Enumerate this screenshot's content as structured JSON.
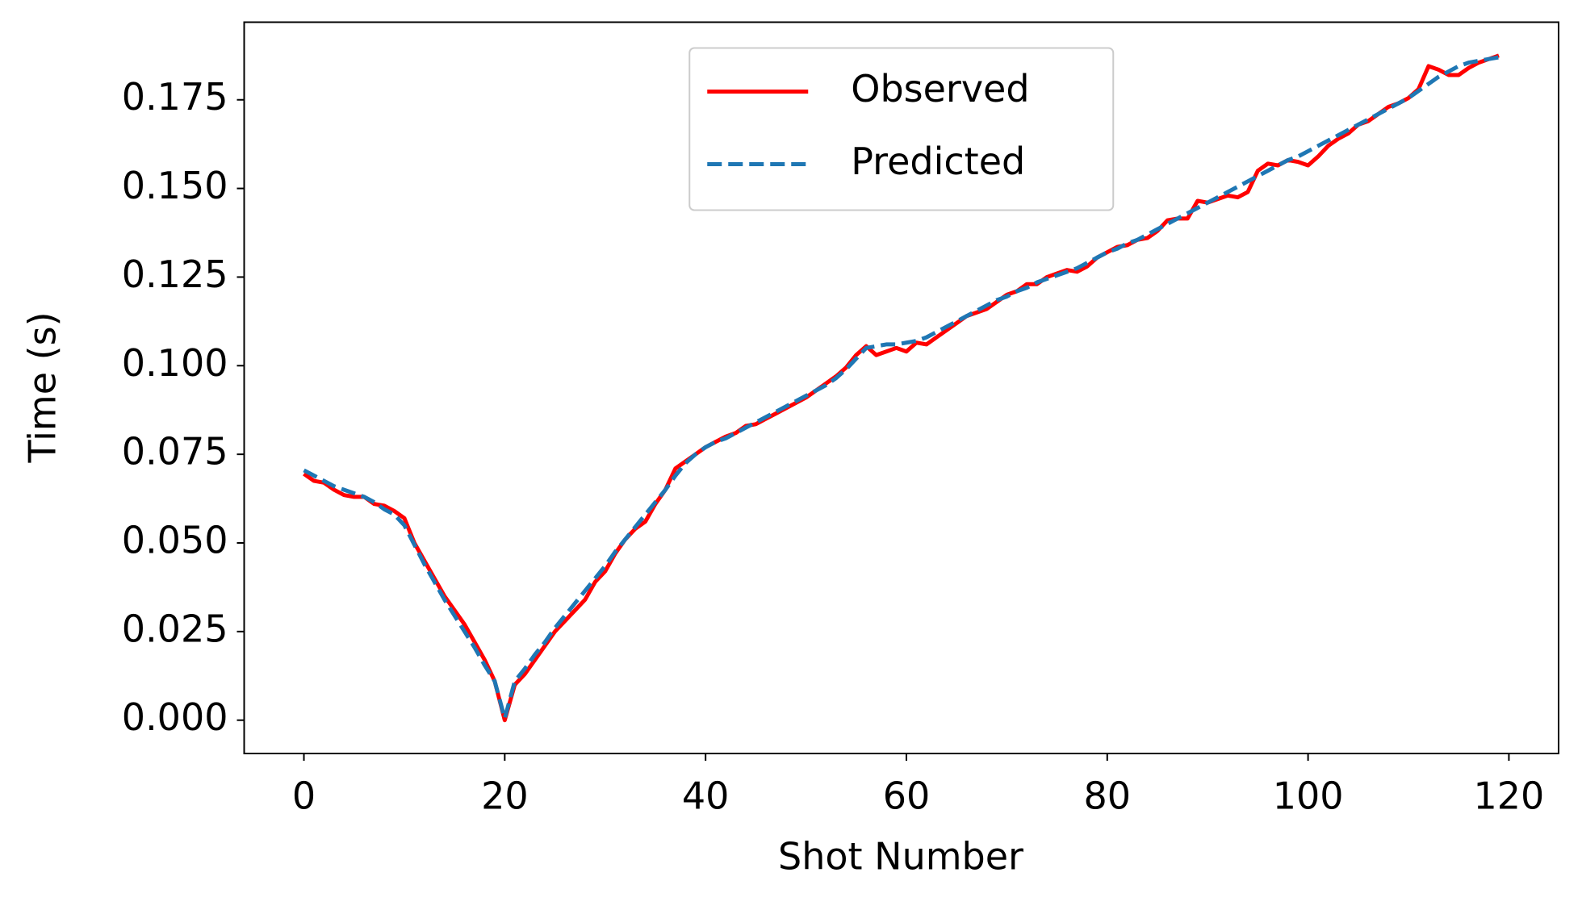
{
  "chart_data": {
    "type": "line",
    "xlabel": "Shot Number",
    "ylabel": "Time (s)",
    "x": [
      0,
      1,
      2,
      3,
      4,
      5,
      6,
      7,
      8,
      9,
      10,
      11,
      12,
      13,
      14,
      15,
      16,
      17,
      18,
      19,
      20,
      21,
      22,
      23,
      24,
      25,
      26,
      27,
      28,
      29,
      30,
      31,
      32,
      33,
      34,
      35,
      36,
      37,
      38,
      39,
      40,
      41,
      42,
      43,
      44,
      45,
      46,
      47,
      48,
      49,
      50,
      51,
      52,
      53,
      54,
      55,
      56,
      57,
      58,
      59,
      60,
      61,
      62,
      63,
      64,
      65,
      66,
      67,
      68,
      69,
      70,
      71,
      72,
      73,
      74,
      75,
      76,
      77,
      78,
      79,
      80,
      81,
      82,
      83,
      84,
      85,
      86,
      87,
      88,
      89,
      90,
      91,
      92,
      93,
      94,
      95,
      96,
      97,
      98,
      99,
      100,
      101,
      102,
      103,
      104,
      105,
      106,
      107,
      108,
      109,
      110,
      111,
      112,
      113,
      114,
      115,
      116,
      117,
      118,
      119
    ],
    "series": [
      {
        "name": "Observed",
        "color": "#ff0000",
        "linestyle": "solid",
        "values": [
          0.0695,
          0.0675,
          0.067,
          0.065,
          0.0635,
          0.063,
          0.063,
          0.061,
          0.0605,
          0.059,
          0.057,
          0.05,
          0.045,
          0.04,
          0.035,
          0.031,
          0.027,
          0.022,
          0.017,
          0.011,
          0.0,
          0.01,
          0.013,
          0.017,
          0.021,
          0.025,
          0.028,
          0.031,
          0.034,
          0.039,
          0.042,
          0.047,
          0.051,
          0.054,
          0.056,
          0.061,
          0.065,
          0.071,
          0.073,
          0.075,
          0.077,
          0.0785,
          0.08,
          0.081,
          0.083,
          0.0835,
          0.085,
          0.0865,
          0.088,
          0.0895,
          0.091,
          0.093,
          0.095,
          0.097,
          0.0995,
          0.103,
          0.1055,
          0.103,
          0.104,
          0.105,
          0.104,
          0.1065,
          0.106,
          0.108,
          0.11,
          0.112,
          0.114,
          0.115,
          0.116,
          0.118,
          0.12,
          0.121,
          0.123,
          0.123,
          0.125,
          0.126,
          0.127,
          0.1265,
          0.128,
          0.1305,
          0.132,
          0.1335,
          0.134,
          0.1355,
          0.136,
          0.138,
          0.141,
          0.1415,
          0.1415,
          0.1465,
          0.146,
          0.147,
          0.148,
          0.1475,
          0.149,
          0.155,
          0.157,
          0.1565,
          0.158,
          0.1575,
          0.1565,
          0.159,
          0.162,
          0.164,
          0.1655,
          0.168,
          0.169,
          0.171,
          0.173,
          0.174,
          0.1755,
          0.178,
          0.1845,
          0.1835,
          0.182,
          0.182,
          0.184,
          0.1855,
          0.1865,
          0.1875
        ]
      },
      {
        "name": "Predicted",
        "color": "#1f77b4",
        "linestyle": "dashed",
        "values": [
          0.0705,
          0.069,
          0.0675,
          0.066,
          0.065,
          0.064,
          0.063,
          0.0615,
          0.0595,
          0.058,
          0.055,
          0.0495,
          0.044,
          0.039,
          0.034,
          0.0295,
          0.025,
          0.0205,
          0.0155,
          0.011,
          0.0005,
          0.011,
          0.0145,
          0.0185,
          0.022,
          0.026,
          0.0295,
          0.033,
          0.0365,
          0.04,
          0.0435,
          0.0475,
          0.051,
          0.0545,
          0.058,
          0.0615,
          0.065,
          0.069,
          0.0725,
          0.075,
          0.077,
          0.0785,
          0.0795,
          0.081,
          0.0825,
          0.084,
          0.0855,
          0.087,
          0.0885,
          0.09,
          0.0915,
          0.093,
          0.0945,
          0.0965,
          0.099,
          0.102,
          0.105,
          0.1055,
          0.106,
          0.106,
          0.1065,
          0.107,
          0.108,
          0.1095,
          0.111,
          0.1125,
          0.114,
          0.1155,
          0.117,
          0.1185,
          0.1195,
          0.121,
          0.122,
          0.1235,
          0.1245,
          0.1255,
          0.1265,
          0.1275,
          0.129,
          0.1305,
          0.132,
          0.133,
          0.1345,
          0.1355,
          0.137,
          0.1385,
          0.14,
          0.1415,
          0.143,
          0.1445,
          0.146,
          0.1475,
          0.149,
          0.1505,
          0.152,
          0.1535,
          0.155,
          0.1565,
          0.158,
          0.159,
          0.1605,
          0.162,
          0.1635,
          0.165,
          0.1665,
          0.168,
          0.1695,
          0.171,
          0.1725,
          0.174,
          0.1755,
          0.1775,
          0.1795,
          0.1815,
          0.183,
          0.1845,
          0.1855,
          0.186,
          0.1865,
          0.187
        ]
      }
    ],
    "xlim": [
      -5.95,
      124.95
    ],
    "xticks": [
      0,
      20,
      40,
      60,
      80,
      100,
      120
    ],
    "ylim": [
      -0.0094,
      0.1969
    ],
    "yticks": [
      {
        "value": 0,
        "label": "0.000"
      },
      0.025,
      {
        "value": 0.05,
        "label": "0.050"
      },
      0.075,
      {
        "value": 0.1,
        "label": "0.100"
      },
      0.125,
      {
        "value": 0.15,
        "label": "0.150"
      },
      0.175
    ],
    "grid": false,
    "legend": "upper center"
  }
}
